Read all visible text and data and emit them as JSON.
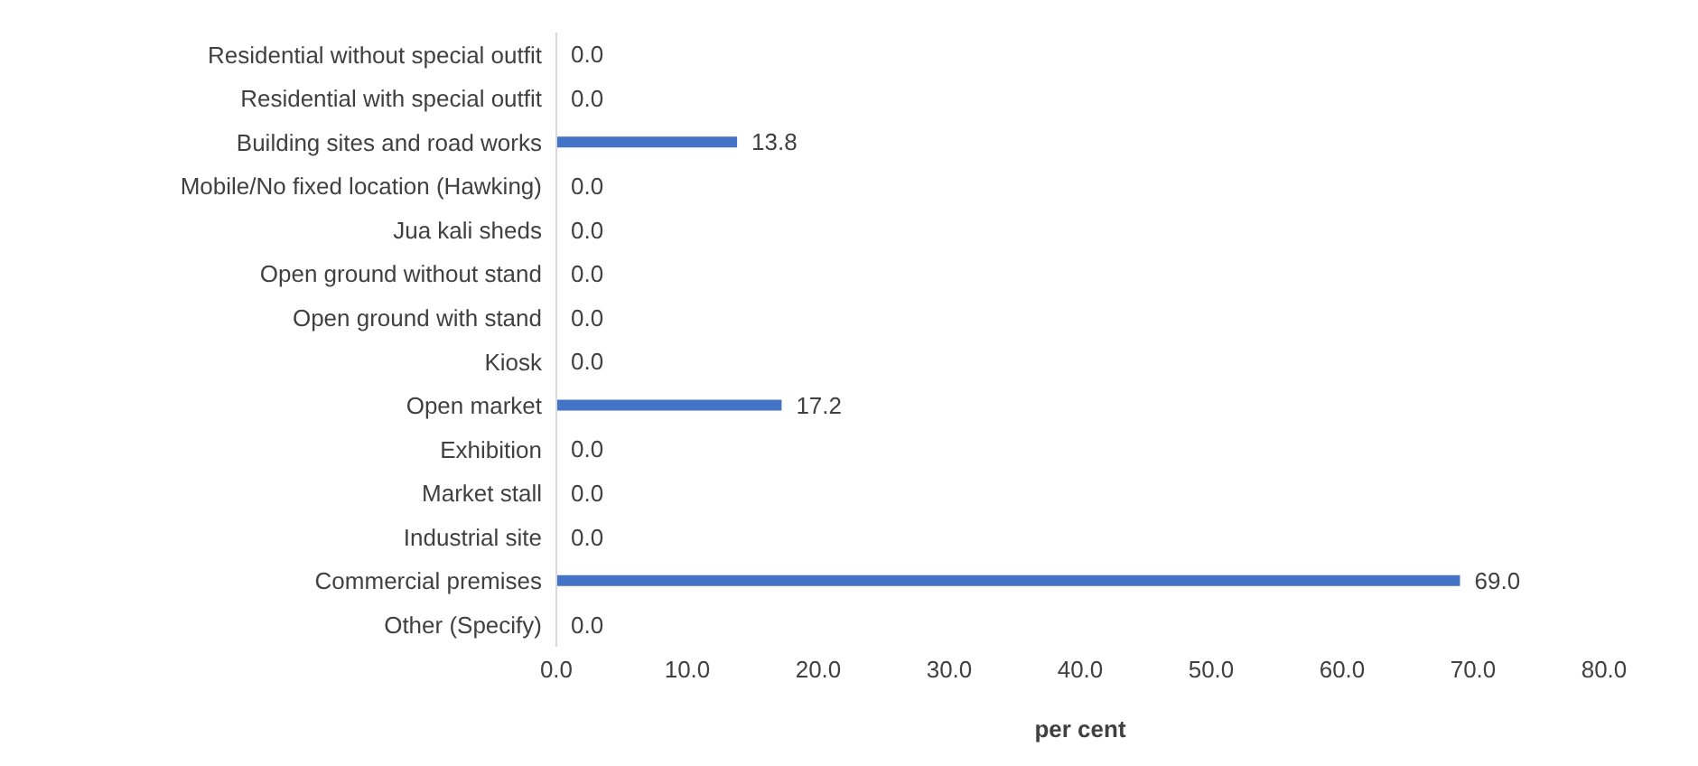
{
  "chart_data": {
    "type": "bar",
    "orientation": "horizontal",
    "xlabel": "per cent",
    "categories": [
      "Residential without special outfit",
      "Residential with special outfit",
      "Building sites and road works",
      "Mobile/No fixed location (Hawking)",
      "Jua kali sheds",
      "Open ground without stand",
      "Open ground with stand",
      "Kiosk",
      "Open market",
      "Exhibition",
      "Market stall",
      "Industrial site",
      "Commercial premises",
      "Other (Specify)"
    ],
    "values": [
      0,
      0,
      13.8,
      0,
      0,
      0,
      0,
      0,
      17.2,
      0,
      0,
      0,
      69.0,
      0
    ],
    "value_labels": [
      "0.0",
      "0.0",
      "13.8",
      "0.0",
      "0.0",
      "0.0",
      "0.0",
      "0.0",
      "17.2",
      "0.0",
      "0.0",
      "0.0",
      "69.0",
      "0.0"
    ],
    "color": "#4472c4",
    "xlim": [
      0,
      80
    ],
    "xticks": [
      {
        "value": 0,
        "label": "0.0"
      },
      {
        "value": 10,
        "label": "10.0"
      },
      {
        "value": 20,
        "label": "20.0"
      },
      {
        "value": 30,
        "label": "30.0"
      },
      {
        "value": 40,
        "label": "40.0"
      },
      {
        "value": 50,
        "label": "50.0"
      },
      {
        "value": 60,
        "label": "60.0"
      },
      {
        "value": 70,
        "label": "70.0"
      },
      {
        "value": 80,
        "label": "80.0"
      }
    ]
  }
}
